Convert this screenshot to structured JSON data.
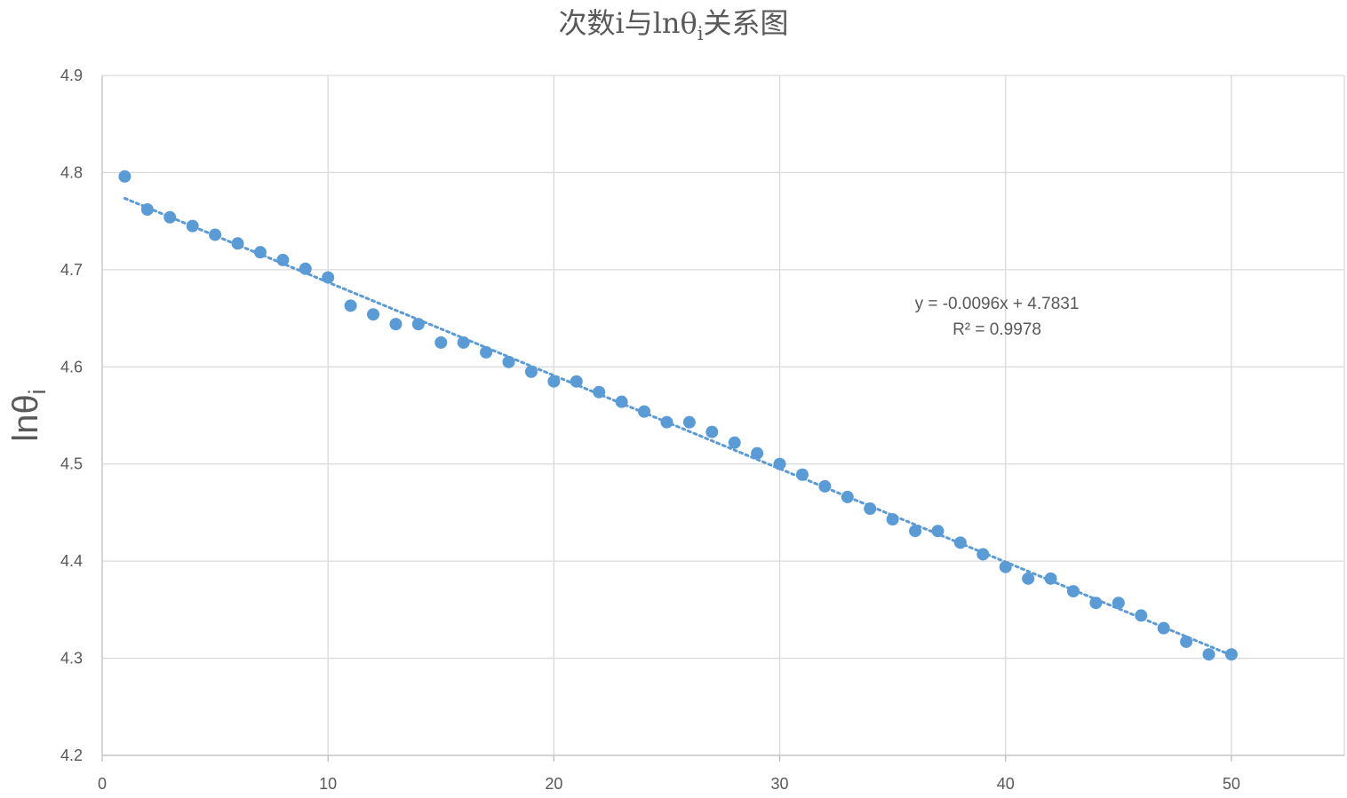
{
  "chart_data": {
    "type": "scatter",
    "title_main": "次数i与lnθ",
    "title_sub": "i",
    "title_tail": "关系图",
    "ylabel_main": "lnθ",
    "ylabel_sub": "i",
    "xlabel": "",
    "xlim": [
      0,
      55
    ],
    "ylim": [
      4.2,
      4.9
    ],
    "xticks": [
      0,
      10,
      20,
      30,
      40,
      50
    ],
    "xtick_labels": [
      "0",
      "10",
      "20",
      "30",
      "40",
      "50"
    ],
    "yticks": [
      4.2,
      4.3,
      4.4,
      4.5,
      4.6,
      4.7,
      4.8,
      4.9
    ],
    "ytick_labels": [
      "4.2",
      "4.3",
      "4.4",
      "4.5",
      "4.6",
      "4.7",
      "4.8",
      "4.9"
    ],
    "grid": true,
    "series": [
      {
        "name": "lnθi",
        "color": "#5B9BD5",
        "x": [
          1,
          2,
          3,
          4,
          5,
          6,
          7,
          8,
          9,
          10,
          11,
          12,
          13,
          14,
          15,
          16,
          17,
          18,
          19,
          20,
          21,
          22,
          23,
          24,
          25,
          26,
          27,
          28,
          29,
          30,
          31,
          32,
          33,
          34,
          35,
          36,
          37,
          38,
          39,
          40,
          41,
          42,
          43,
          44,
          45,
          46,
          47,
          48,
          49,
          50
        ],
        "y": [
          4.796,
          4.762,
          4.754,
          4.745,
          4.736,
          4.727,
          4.718,
          4.71,
          4.701,
          4.692,
          4.663,
          4.654,
          4.644,
          4.644,
          4.625,
          4.625,
          4.615,
          4.605,
          4.595,
          4.585,
          4.585,
          4.574,
          4.564,
          4.554,
          4.543,
          4.543,
          4.533,
          4.522,
          4.511,
          4.5,
          4.489,
          4.477,
          4.466,
          4.454,
          4.443,
          4.431,
          4.431,
          4.419,
          4.407,
          4.394,
          4.382,
          4.382,
          4.369,
          4.357,
          4.357,
          4.344,
          4.331,
          4.317,
          4.304,
          4.304
        ]
      }
    ],
    "trendline": {
      "type": "linear",
      "slope": -0.0096,
      "intercept": 4.7831,
      "x_range": [
        1,
        50
      ],
      "style": "dotted",
      "color": "#5B9BD5",
      "equation": "y = -0.0096x + 4.7831",
      "r_squared": "R² = 0.9978"
    }
  }
}
